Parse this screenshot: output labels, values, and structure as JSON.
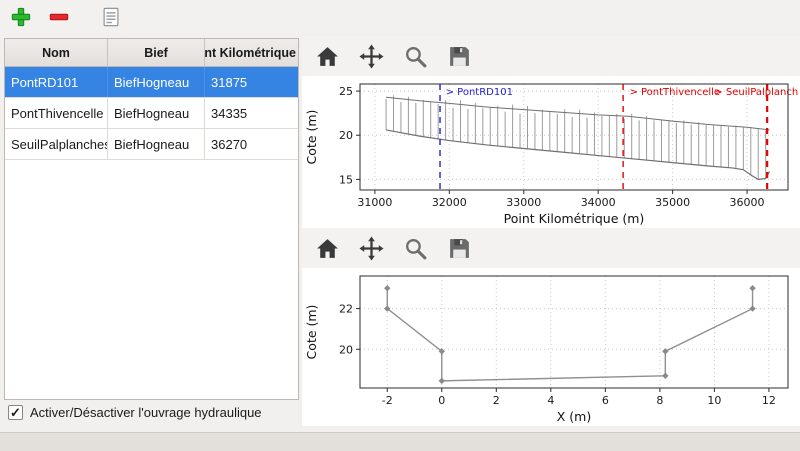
{
  "app_toolbar": {
    "buttons": [
      {
        "name": "add",
        "icon": "plus-icon"
      },
      {
        "name": "remove",
        "icon": "minus-icon"
      },
      {
        "name": "edit",
        "icon": "document-icon"
      }
    ]
  },
  "table": {
    "columns": [
      "Nom",
      "Bief",
      "Point Kilométrique"
    ],
    "rows": [
      {
        "nom": "PontRD101",
        "bief": "BiefHogneau",
        "pk": "31875"
      },
      {
        "nom": "PontThivencelle",
        "bief": "BiefHogneau",
        "pk": "34335"
      },
      {
        "nom": "SeuilPalplanches",
        "bief": "BiefHogneau",
        "pk": "36270"
      }
    ],
    "selected_index": 0
  },
  "footer": {
    "checkbox_label": "Activer/Désactiver l'ouvrage hydraulique",
    "checked": true
  },
  "plot_toolbar": {
    "icons": [
      "home",
      "pan",
      "zoom",
      "save"
    ]
  },
  "colors": {
    "selection": "#3584e4",
    "annotation_blue": "#2222cc",
    "annotation_red": "#e60000"
  },
  "chart_data": [
    {
      "type": "line",
      "xlabel": "Point Kilométrique (m)",
      "ylabel": "Cote (m)",
      "xlim": [
        30800,
        36550
      ],
      "ylim": [
        13.8,
        25.8
      ],
      "xticks": [
        31000,
        32000,
        33000,
        34000,
        35000,
        36000
      ],
      "yticks": [
        15,
        20,
        25
      ],
      "grid": true,
      "series": [
        {
          "name": "top_envelope",
          "color": "#6f6f6f",
          "width": 1,
          "points": [
            [
              31150,
              24.3
            ],
            [
              31600,
              23.9
            ],
            [
              32000,
              23.6
            ],
            [
              32500,
              23.2
            ],
            [
              33000,
              22.9
            ],
            [
              33500,
              22.6
            ],
            [
              34000,
              22.3
            ],
            [
              34400,
              22.15
            ],
            [
              35000,
              21.6
            ],
            [
              35500,
              21.2
            ],
            [
              36000,
              20.9
            ],
            [
              36300,
              20.6
            ]
          ]
        },
        {
          "name": "bottom_envelope",
          "color": "#6f6f6f",
          "width": 1.2,
          "points": [
            [
              31150,
              20.6
            ],
            [
              31600,
              19.9
            ],
            [
              32000,
              19.4
            ],
            [
              32500,
              18.9
            ],
            [
              33000,
              18.5
            ],
            [
              33500,
              18.1
            ],
            [
              34000,
              17.7
            ],
            [
              34500,
              17.3
            ],
            [
              35000,
              16.9
            ],
            [
              35500,
              16.5
            ],
            [
              35800,
              16.3
            ],
            [
              35950,
              16.1
            ],
            [
              36050,
              15.5
            ],
            [
              36150,
              15.0
            ],
            [
              36250,
              15.1
            ],
            [
              36300,
              15.9
            ]
          ]
        }
      ],
      "section_lines": {
        "x_start": 31150,
        "x_end": 36300,
        "step": 100
      },
      "annotations": [
        {
          "x": 31875,
          "label": "> PontRD101",
          "label_x": 31950,
          "color": "#2222cc",
          "width": 1.4
        },
        {
          "x": 34335,
          "label": "> PontThivencelle",
          "label_x": 34420,
          "color": "#e60000",
          "width": 1.4
        },
        {
          "x": 36270,
          "label": "> SeuilPalplanches",
          "label_x": 35560,
          "color": "#e60000",
          "width": 2.2
        }
      ]
    },
    {
      "type": "line",
      "xlabel": "X (m)",
      "ylabel": "Cote (m)",
      "xlim": [
        -3,
        12.7
      ],
      "ylim": [
        18.1,
        23.6
      ],
      "xticks": [
        -2,
        0,
        2,
        4,
        6,
        8,
        10,
        12
      ],
      "yticks": [
        20,
        22
      ],
      "grid": true,
      "series": [
        {
          "name": "cross_section",
          "color": "#8f8f8f",
          "width": 1.4,
          "marker": true,
          "points": [
            [
              -2,
              23
            ],
            [
              -2,
              22
            ],
            [
              0,
              19.9
            ],
            [
              0,
              18.45
            ],
            [
              8.2,
              18.7
            ],
            [
              8.2,
              19.9
            ],
            [
              11.4,
              22
            ],
            [
              11.4,
              23
            ]
          ]
        }
      ]
    }
  ]
}
